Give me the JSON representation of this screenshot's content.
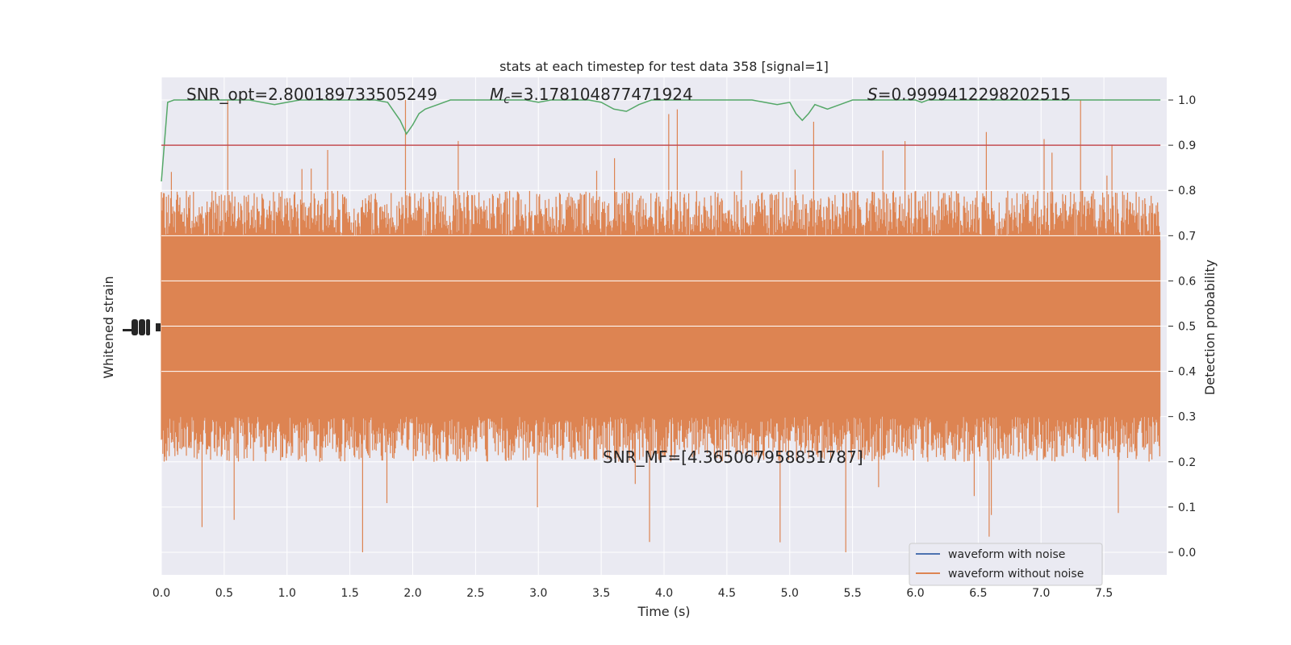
{
  "chart_data": {
    "type": "line",
    "title": "stats at each timestep for test data 358 [signal=1]",
    "xlabel": "Time (s)",
    "ylabel_left": "Whitened strain",
    "ylabel_right": "Detection probability",
    "xlim": [
      0.0,
      8.0
    ],
    "ylim_right": [
      -0.05,
      1.05
    ],
    "x_ticks": [
      "0.0",
      "0.5",
      "1.0",
      "1.5",
      "2.0",
      "2.5",
      "3.0",
      "3.5",
      "4.0",
      "4.5",
      "5.0",
      "5.5",
      "6.0",
      "6.5",
      "7.0",
      "7.5"
    ],
    "y_ticks_right": [
      "0.0",
      "0.1",
      "0.2",
      "0.3",
      "0.4",
      "0.5",
      "0.6",
      "0.7",
      "0.8",
      "0.9",
      "1.0"
    ],
    "grid": true,
    "legend_position": "lower right",
    "annotations": {
      "snr_opt": "SNR_opt=2.800189733505249",
      "mc_symbol": "M",
      "mc_sub": "c",
      "mc_value": "=3.178104877471924",
      "s_symbol": "S",
      "s_value": "=0.9999412298202515",
      "snr_mf": "SNR_MF=[4.365067958831787]"
    },
    "series": [
      {
        "name": "waveform with noise",
        "color": "#4c72b0"
      },
      {
        "name": "waveform without noise",
        "color": "#dd8452"
      },
      {
        "color": "#55a868",
        "x": [
          0.0,
          0.05,
          0.1,
          0.2,
          0.3,
          0.4,
          0.5,
          0.6,
          0.7,
          0.8,
          0.9,
          1.0,
          1.1,
          1.2,
          1.3,
          1.4,
          1.5,
          1.6,
          1.7,
          1.8,
          1.85,
          1.9,
          1.95,
          2.0,
          2.05,
          2.1,
          2.2,
          2.3,
          2.5,
          2.7,
          2.9,
          3.0,
          3.1,
          3.3,
          3.4,
          3.5,
          3.6,
          3.7,
          3.8,
          3.9,
          4.0,
          4.1,
          4.3,
          4.5,
          4.7,
          4.8,
          4.9,
          5.0,
          5.05,
          5.1,
          5.15,
          5.2,
          5.25,
          5.3,
          5.4,
          5.5,
          5.6,
          5.8,
          6.0,
          6.05,
          6.1,
          6.2,
          6.5,
          7.0,
          7.5,
          7.95
        ],
        "y": [
          0.82,
          0.995,
          1.0,
          1.0,
          1.0,
          1.0,
          1.0,
          1.0,
          1.0,
          0.995,
          0.99,
          0.995,
          1.0,
          1.0,
          1.0,
          1.0,
          1.0,
          1.0,
          1.0,
          0.995,
          0.975,
          0.955,
          0.925,
          0.945,
          0.97,
          0.98,
          0.99,
          1.0,
          1.0,
          1.0,
          1.0,
          0.995,
          1.0,
          1.0,
          1.0,
          0.995,
          0.98,
          0.975,
          0.99,
          1.0,
          1.0,
          1.0,
          1.0,
          1.0,
          1.0,
          0.995,
          0.99,
          0.995,
          0.97,
          0.955,
          0.97,
          0.99,
          0.985,
          0.98,
          0.99,
          1.0,
          1.0,
          1.0,
          1.0,
          0.995,
          1.0,
          1.0,
          1.0,
          1.0,
          1.0,
          1.0
        ]
      },
      {
        "color": "#c44e52",
        "x": [
          0.0,
          7.95
        ],
        "y": [
          0.9,
          0.9
        ]
      }
    ]
  }
}
